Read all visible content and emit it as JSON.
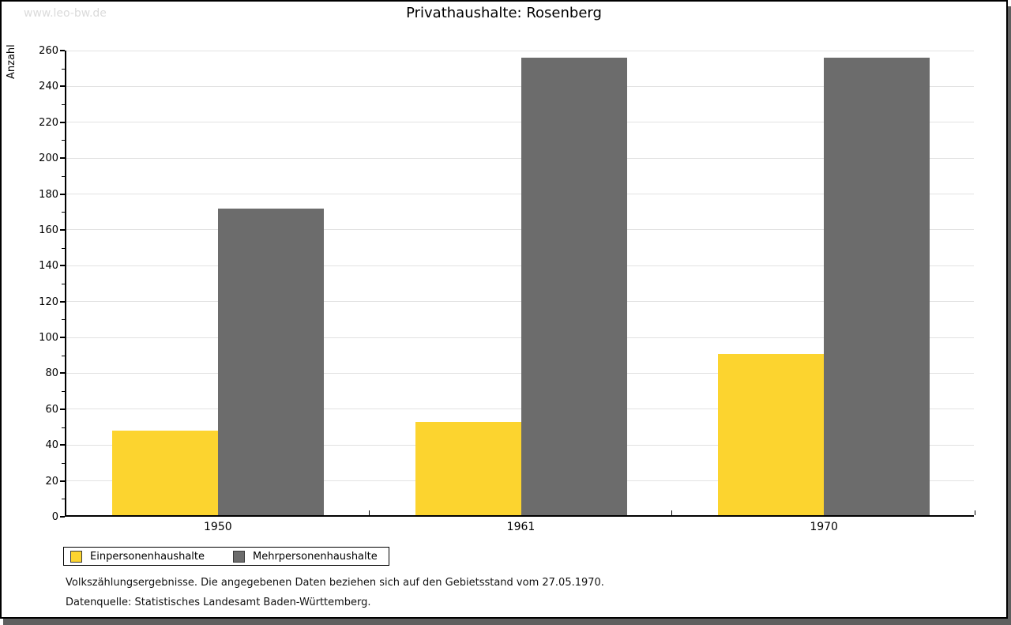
{
  "watermark": "www.leo-bw.de",
  "title": "Privathaushalte: Rosenberg",
  "chart_data": {
    "type": "bar",
    "title": "Privathaushalte: Rosenberg",
    "categories": [
      "1950",
      "1961",
      "1970"
    ],
    "series": [
      {
        "name": "Einpersonenhaushalte",
        "color": "#FCD42F",
        "values": [
          47,
          52,
          90
        ]
      },
      {
        "name": "Mehrpersonenhaushalte",
        "color": "#6C6C6C",
        "values": [
          171,
          255,
          255
        ]
      }
    ],
    "xlabel": "",
    "ylabel": "Anzahl",
    "ylim": [
      0,
      260
    ],
    "ytick_step": 20,
    "yminor_step": 10,
    "grid": true,
    "legend_position": "bottom-left"
  },
  "footer": {
    "line1": "Volkszählungsergebnisse. Die angegebenen Daten beziehen sich auf den Gebietsstand vom 27.05.1970.",
    "line2": "Datenquelle: Statistisches Landesamt Baden-Württemberg."
  },
  "colors": {
    "bar_yellow": "#FCD42F",
    "bar_gray": "#6C6C6C",
    "gridline": "#e2e2e2",
    "watermark": "#dbdbdb",
    "shadow": "#5f5f5f",
    "axis": "#000000"
  }
}
